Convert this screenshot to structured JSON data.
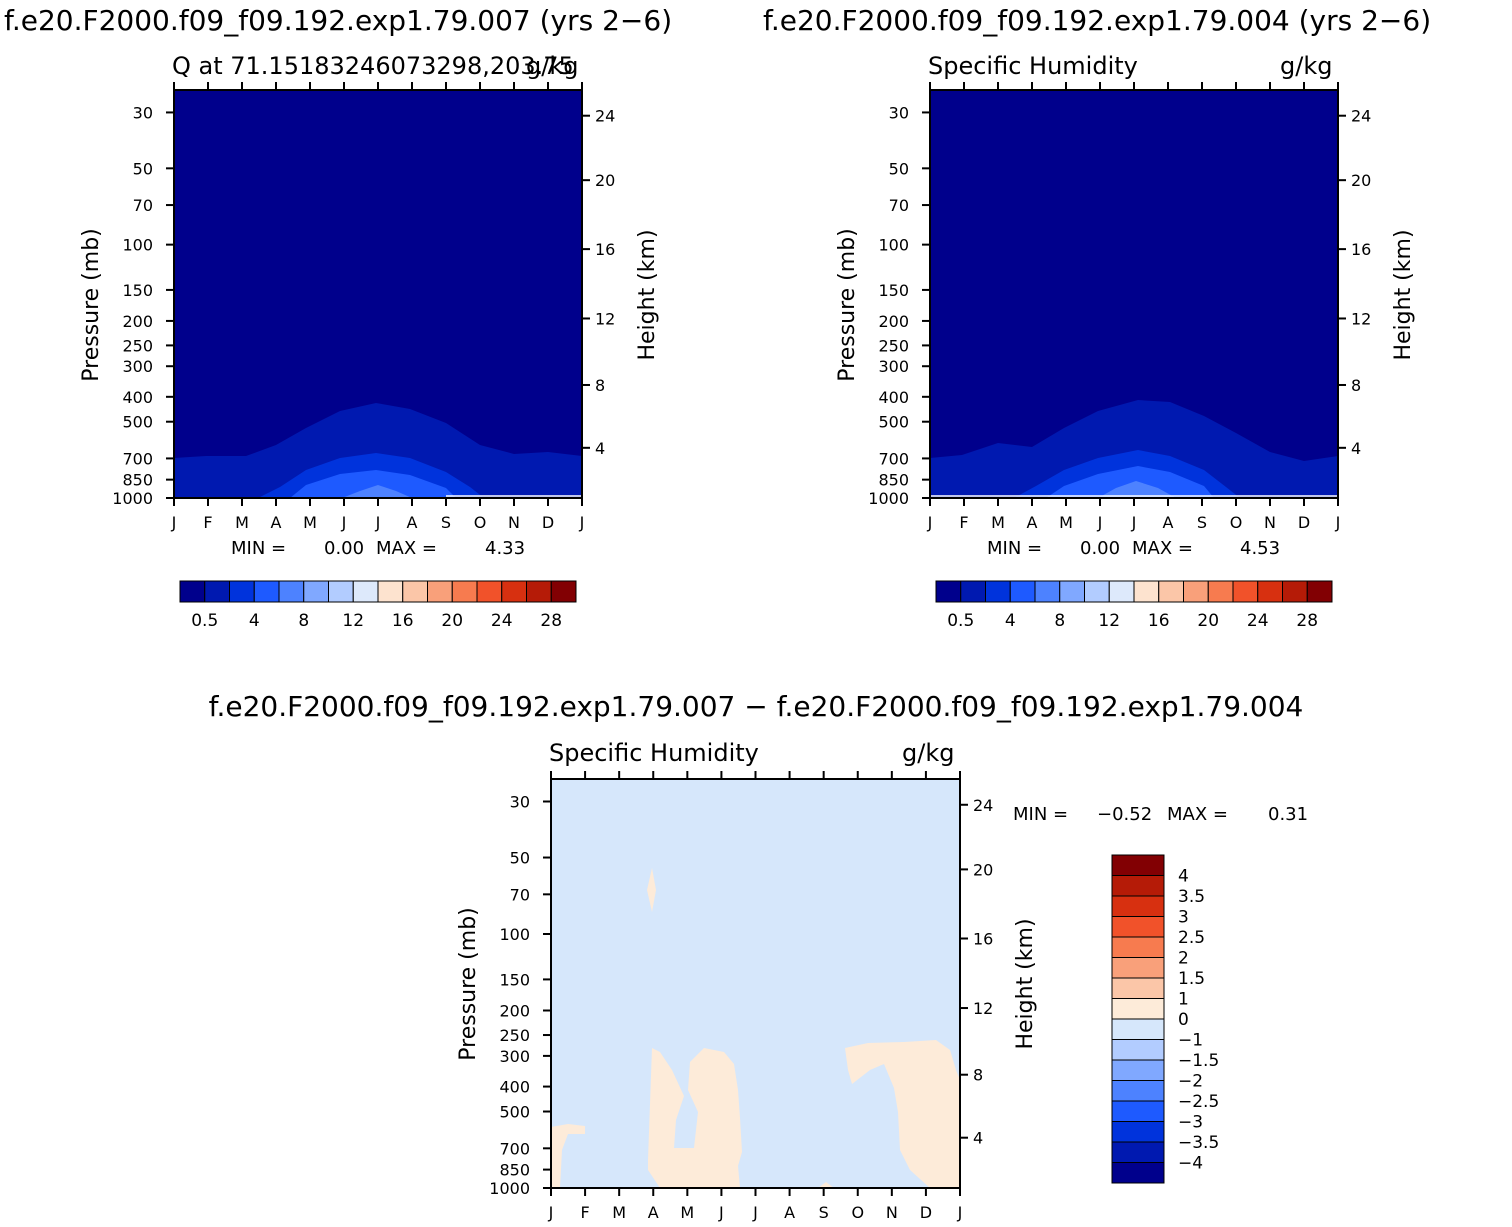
{
  "chart_data": [
    {
      "type": "heatmap",
      "title": "f.e20.F2000.f09_f09.192.exp1.79.007 (yrs 2−6)",
      "subtitle_left": "Q at 71.15183246073298,203.75",
      "subtitle_right": "g/kg",
      "ylabel": "Pressure (mb)",
      "y2label": "Height (km)",
      "x_ticks": [
        "J",
        "F",
        "M",
        "A",
        "M",
        "J",
        "J",
        "A",
        "S",
        "O",
        "N",
        "D",
        "J"
      ],
      "y_ticks": [
        "30",
        "50",
        "70",
        "100",
        "150",
        "200",
        "250",
        "300",
        "400",
        "500",
        "700",
        "850",
        "1000"
      ],
      "y2_ticks": [
        "24",
        "20",
        "16",
        "12",
        "8",
        "4"
      ],
      "min_label": "MIN =",
      "min_value": "0.00",
      "max_label": "MAX =",
      "max_value": "4.33",
      "colorbar_labels": [
        "0.5",
        "4",
        "8",
        "12",
        "16",
        "20",
        "24",
        "28"
      ]
    },
    {
      "type": "heatmap",
      "title": "f.e20.F2000.f09_f09.192.exp1.79.004 (yrs 2−6)",
      "subtitle_left": "Specific Humidity",
      "subtitle_right": "g/kg",
      "ylabel": "Pressure (mb)",
      "y2label": "Height (km)",
      "x_ticks": [
        "J",
        "F",
        "M",
        "A",
        "M",
        "J",
        "J",
        "A",
        "S",
        "O",
        "N",
        "D",
        "J"
      ],
      "y_ticks": [
        "30",
        "50",
        "70",
        "100",
        "150",
        "200",
        "250",
        "300",
        "400",
        "500",
        "700",
        "850",
        "1000"
      ],
      "y2_ticks": [
        "24",
        "20",
        "16",
        "12",
        "8",
        "4"
      ],
      "min_label": "MIN =",
      "min_value": "0.00",
      "max_label": "MAX =",
      "max_value": "4.53",
      "colorbar_labels": [
        "0.5",
        "4",
        "8",
        "12",
        "16",
        "20",
        "24",
        "28"
      ]
    },
    {
      "type": "heatmap",
      "title": "f.e20.F2000.f09_f09.192.exp1.79.007 − f.e20.F2000.f09_f09.192.exp1.79.004",
      "subtitle_left": "Specific Humidity",
      "subtitle_right": "g/kg",
      "ylabel": "Pressure (mb)",
      "y2label": "Height (km)",
      "x_ticks": [
        "J",
        "F",
        "M",
        "A",
        "M",
        "J",
        "J",
        "A",
        "S",
        "O",
        "N",
        "D",
        "J"
      ],
      "y_ticks": [
        "30",
        "50",
        "70",
        "100",
        "150",
        "200",
        "250",
        "300",
        "400",
        "500",
        "700",
        "850",
        "1000"
      ],
      "y2_ticks": [
        "24",
        "20",
        "16",
        "12",
        "8",
        "4"
      ],
      "min_label": "MIN =",
      "min_value": "−0.52",
      "max_label": "MAX =",
      "max_value": "0.31",
      "colorbar_labels": [
        "4",
        "3.5",
        "3",
        "2.5",
        "2",
        "1.5",
        "1",
        "0",
        "−1",
        "−1.5",
        "−2",
        "−2.5",
        "−3",
        "−3.5",
        "−4"
      ]
    }
  ],
  "colors": {
    "abs_scale": [
      "#00008c",
      "#0019b0",
      "#0033dc",
      "#1e5aff",
      "#4d82ff",
      "#80a8ff",
      "#b2ccff",
      "#dde9fb",
      "#fde3cf",
      "#fbc6a8",
      "#f9a07a",
      "#f77b4f",
      "#f1522a",
      "#d73010",
      "#b51b07",
      "#820003"
    ],
    "diff_scale": [
      "#00008c",
      "#0019b0",
      "#0033dc",
      "#1e5aff",
      "#4d82ff",
      "#80a8ff",
      "#b2ccff",
      "#d6e7fb",
      "#fdebd9",
      "#fbc6a8",
      "#f9a07a",
      "#f77b4f",
      "#f1522a",
      "#d73010",
      "#b51b07",
      "#820003"
    ]
  }
}
